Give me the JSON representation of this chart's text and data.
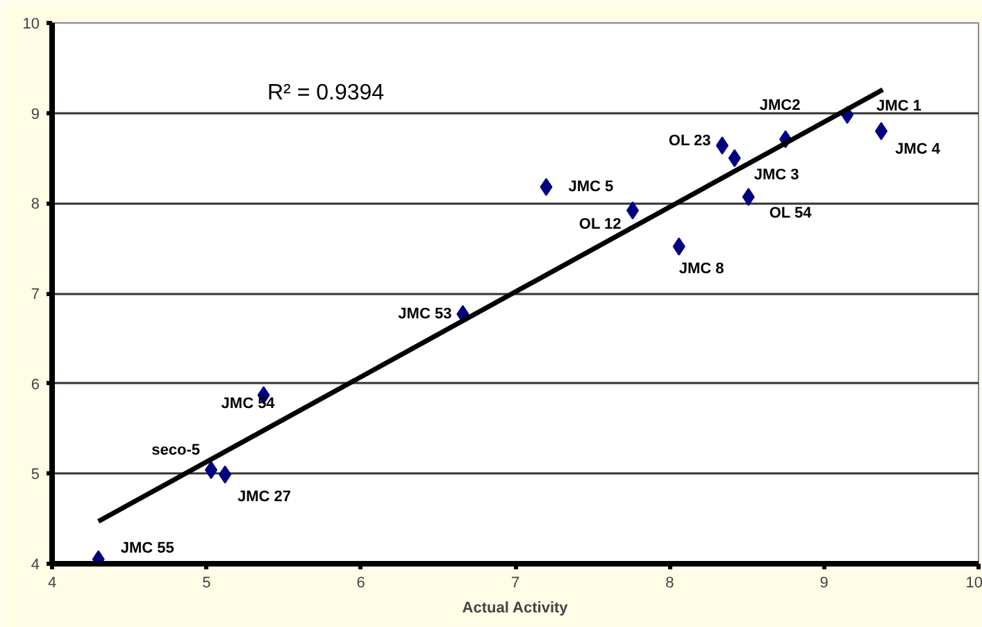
{
  "chart_data": {
    "type": "scatter",
    "xlabel": "Actual Activity",
    "x": [
      4.3,
      5.03,
      5.12,
      5.37,
      6.66,
      7.2,
      7.76,
      8.06,
      8.34,
      8.42,
      8.51,
      8.75,
      9.15,
      9.37
    ],
    "series": [
      {
        "marker": "diamond",
        "color": "#000080",
        "values": [
          4.05,
          5.04,
          4.99,
          5.87,
          6.77,
          8.18,
          7.92,
          7.52,
          8.64,
          8.5,
          8.07,
          8.71,
          8.98,
          8.8
        ]
      },
      {
        "type": "line",
        "color": "#000000",
        "x": [
          4.3,
          9.38
        ],
        "values": [
          4.47,
          9.26
        ]
      }
    ],
    "annotations": [
      "R² = 0.9394",
      {
        "text": "JMC 55",
        "x": 4.3,
        "y": 4.05
      },
      {
        "text": "seco-5",
        "x": 5.03,
        "y": 5.04
      },
      {
        "text": "JMC 27",
        "x": 5.12,
        "y": 4.99
      },
      {
        "text": "JMC 54",
        "x": 5.37,
        "y": 5.87
      },
      {
        "text": "JMC 53",
        "x": 6.66,
        "y": 6.77
      },
      {
        "text": "JMC 5",
        "x": 7.2,
        "y": 8.18
      },
      {
        "text": "OL 12",
        "x": 7.76,
        "y": 7.92
      },
      {
        "text": "JMC 8",
        "x": 8.06,
        "y": 7.52
      },
      {
        "text": "OL 23",
        "x": 8.34,
        "y": 8.64
      },
      {
        "text": "JMC 3",
        "x": 8.42,
        "y": 8.5
      },
      {
        "text": "OL 54",
        "x": 8.51,
        "y": 8.07
      },
      {
        "text": "JMC2",
        "x": 8.75,
        "y": 8.71
      },
      {
        "text": "JMC 1",
        "x": 9.15,
        "y": 8.98
      },
      {
        "text": "JMC 4",
        "x": 9.37,
        "y": 8.8
      }
    ],
    "xlim": [
      4,
      10
    ],
    "ylim": [
      4,
      10
    ],
    "xticks": [
      4,
      5,
      6,
      7,
      8,
      9,
      10
    ],
    "yticks": [
      4,
      5,
      6,
      7,
      8,
      9,
      10
    ],
    "grid": "y",
    "line_style": "solid"
  }
}
